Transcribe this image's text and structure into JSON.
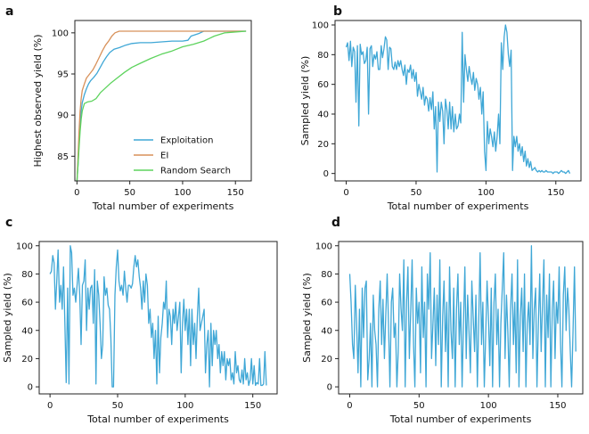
{
  "chart_data": [
    {
      "panel": "a",
      "type": "line",
      "xlabel": "Total number of experiments",
      "ylabel": "Highest observed yield (%)",
      "xlim": [
        -2,
        165
      ],
      "ylim": [
        82,
        101.5
      ],
      "xticks": [
        0,
        50,
        100,
        150
      ],
      "yticks": [
        85,
        90,
        95,
        100
      ],
      "legend": "lower-right",
      "series": [
        {
          "name": "Exploitation",
          "color": "#3fa7d6",
          "x": [
            0,
            1,
            2,
            3,
            4,
            5,
            7,
            9,
            11,
            13,
            16,
            19,
            22,
            25,
            28,
            31,
            35,
            40,
            46,
            52,
            60,
            70,
            80,
            90,
            100,
            105,
            108,
            115,
            120,
            140,
            160
          ],
          "y": [
            82,
            84,
            87,
            89,
            90.5,
            91.5,
            92.5,
            93.2,
            93.8,
            94.2,
            94.6,
            95.1,
            95.8,
            96.5,
            97.1,
            97.6,
            98.0,
            98.2,
            98.5,
            98.7,
            98.8,
            98.8,
            98.9,
            99.0,
            99.0,
            99.1,
            99.6,
            99.9,
            100.2,
            100.2,
            100.2
          ]
        },
        {
          "name": "EI",
          "color": "#d8915a",
          "x": [
            0,
            1,
            2,
            3,
            4,
            5,
            7,
            9,
            12,
            15,
            18,
            21,
            24,
            27,
            30,
            33,
            36,
            40,
            45,
            60,
            80,
            100,
            120,
            140,
            160
          ],
          "y": [
            82,
            85,
            88,
            90.5,
            92,
            93,
            93.8,
            94.5,
            95,
            95.5,
            96.2,
            97.0,
            97.8,
            98.5,
            99.0,
            99.6,
            100.0,
            100.2,
            100.2,
            100.2,
            100.2,
            100.2,
            100.2,
            100.2,
            100.2
          ]
        },
        {
          "name": "Random Search",
          "color": "#5dd35d",
          "x": [
            0,
            1,
            2,
            3,
            4,
            5,
            7,
            10,
            14,
            18,
            22,
            27,
            32,
            38,
            45,
            52,
            60,
            70,
            80,
            90,
            100,
            110,
            120,
            125,
            130,
            140,
            160
          ],
          "y": [
            82,
            84,
            86,
            88,
            89.5,
            90.5,
            91.4,
            91.6,
            91.7,
            92.0,
            92.7,
            93.3,
            93.9,
            94.5,
            95.2,
            95.8,
            96.3,
            96.9,
            97.4,
            97.8,
            98.3,
            98.6,
            99.0,
            99.3,
            99.6,
            100.0,
            100.2
          ]
        }
      ]
    },
    {
      "panel": "b",
      "type": "line",
      "xlabel": "Total number of experiments",
      "ylabel": "Sampled yield (%)",
      "xlim": [
        -8,
        168
      ],
      "ylim": [
        -5,
        103
      ],
      "xticks": [
        0,
        50,
        100,
        150
      ],
      "yticks": [
        0,
        20,
        40,
        60,
        80,
        100
      ],
      "series": [
        {
          "name": "yield",
          "color": "#3fa7d6",
          "x_start": 0,
          "values": [
            85,
            88,
            76,
            89,
            72,
            85,
            82,
            48,
            86,
            32,
            87,
            80,
            82,
            74,
            76,
            85,
            40,
            84,
            86,
            72,
            80,
            77,
            82,
            70,
            70,
            86,
            78,
            84,
            92,
            90,
            70,
            85,
            84,
            72,
            70,
            75,
            70,
            76,
            72,
            76,
            70,
            66,
            73,
            60,
            70,
            68,
            73,
            64,
            70,
            62,
            68,
            52,
            60,
            55,
            50,
            58,
            46,
            52,
            50,
            42,
            51,
            43,
            55,
            30,
            45,
            1,
            48,
            35,
            48,
            42,
            20,
            50,
            43,
            30,
            48,
            30,
            45,
            28,
            40,
            30,
            32,
            40,
            34,
            95,
            48,
            80,
            70,
            62,
            72,
            65,
            60,
            68,
            56,
            64,
            60,
            50,
            58,
            40,
            55,
            15,
            2,
            35,
            20,
            30,
            25,
            18,
            28,
            15,
            25,
            40,
            20,
            88,
            70,
            92,
            100,
            95,
            80,
            72,
            83,
            2,
            25,
            18,
            25,
            15,
            20,
            12,
            18,
            8,
            15,
            5,
            10,
            4,
            8,
            2,
            3,
            4,
            2,
            1,
            2,
            1,
            2,
            1,
            1,
            2,
            1,
            1,
            1,
            1,
            0,
            1,
            1,
            1,
            0,
            1,
            2,
            1,
            1,
            0,
            1,
            2,
            0
          ]
        }
      ]
    },
    {
      "panel": "c",
      "type": "line",
      "xlabel": "Total number of experiments",
      "ylabel": "Sampled yield (%)",
      "xlim": [
        -8,
        168
      ],
      "ylim": [
        -5,
        103
      ],
      "xticks": [
        0,
        50,
        100,
        150
      ],
      "yticks": [
        0,
        20,
        40,
        60,
        80,
        100
      ],
      "series": [
        {
          "name": "yield",
          "color": "#3fa7d6",
          "x_start": 0,
          "values": [
            80,
            82,
            93,
            88,
            55,
            75,
            97,
            60,
            72,
            55,
            85,
            45,
            3,
            70,
            2,
            100,
            95,
            65,
            70,
            60,
            72,
            84,
            65,
            30,
            72,
            75,
            90,
            40,
            70,
            55,
            70,
            72,
            45,
            83,
            2,
            75,
            65,
            45,
            20,
            30,
            78,
            65,
            70,
            58,
            55,
            35,
            0,
            0,
            65,
            85,
            97,
            75,
            68,
            72,
            65,
            82,
            70,
            60,
            72,
            72,
            70,
            73,
            85,
            93,
            85,
            90,
            78,
            70,
            55,
            75,
            60,
            80,
            72,
            45,
            55,
            35,
            45,
            20,
            40,
            2,
            50,
            10,
            35,
            45,
            60,
            55,
            75,
            35,
            55,
            50,
            30,
            55,
            45,
            60,
            40,
            50,
            60,
            10,
            45,
            62,
            40,
            55,
            30,
            55,
            15,
            55,
            30,
            45,
            20,
            50,
            70,
            40,
            45,
            50,
            55,
            10,
            30,
            40,
            0,
            45,
            15,
            40,
            30,
            40,
            20,
            30,
            10,
            25,
            15,
            25,
            5,
            20,
            15,
            20,
            5,
            10,
            2,
            25,
            10,
            15,
            5,
            3,
            12,
            2,
            20,
            5,
            10,
            1,
            5,
            20,
            2,
            15,
            1,
            3,
            2,
            20,
            1,
            1,
            2,
            25,
            1
          ]
        }
      ]
    },
    {
      "panel": "d",
      "type": "line",
      "xlabel": "Total number of experiments",
      "ylabel": "Sampled yield (%)",
      "xlim": [
        -8,
        168
      ],
      "ylim": [
        -5,
        103
      ],
      "xticks": [
        0,
        50,
        100,
        150
      ],
      "yticks": [
        0,
        20,
        40,
        60,
        80,
        100
      ],
      "series": [
        {
          "name": "yield",
          "color": "#3fa7d6",
          "x_start": 0,
          "values": [
            80,
            60,
            30,
            20,
            72,
            45,
            10,
            55,
            0,
            70,
            35,
            70,
            75,
            5,
            20,
            45,
            0,
            65,
            40,
            30,
            0,
            55,
            75,
            30,
            62,
            20,
            50,
            80,
            45,
            0,
            60,
            70,
            35,
            45,
            0,
            25,
            80,
            55,
            40,
            90,
            0,
            60,
            85,
            20,
            55,
            90,
            30,
            0,
            70,
            45,
            60,
            10,
            85,
            35,
            60,
            0,
            80,
            55,
            95,
            20,
            45,
            70,
            15,
            65,
            30,
            90,
            0,
            50,
            75,
            25,
            60,
            0,
            85,
            40,
            20,
            70,
            0,
            55,
            80,
            30,
            60,
            0,
            45,
            85,
            20,
            65,
            40,
            10,
            75,
            50,
            25,
            65,
            0,
            45,
            95,
            30,
            60,
            0,
            35,
            75,
            50,
            15,
            70,
            0,
            60,
            80,
            30,
            55,
            0,
            45,
            70,
            95,
            20,
            65,
            40,
            0,
            55,
            80,
            30,
            60,
            10,
            90,
            0,
            50,
            70,
            25,
            80,
            0,
            45,
            60,
            30,
            100,
            20,
            55,
            70,
            0,
            45,
            80,
            25,
            60,
            90,
            0,
            65,
            35,
            80,
            0,
            55,
            75,
            20,
            60,
            45,
            85,
            30,
            0,
            65,
            85,
            40,
            70,
            55,
            25,
            0,
            40,
            85,
            25
          ]
        }
      ]
    }
  ]
}
